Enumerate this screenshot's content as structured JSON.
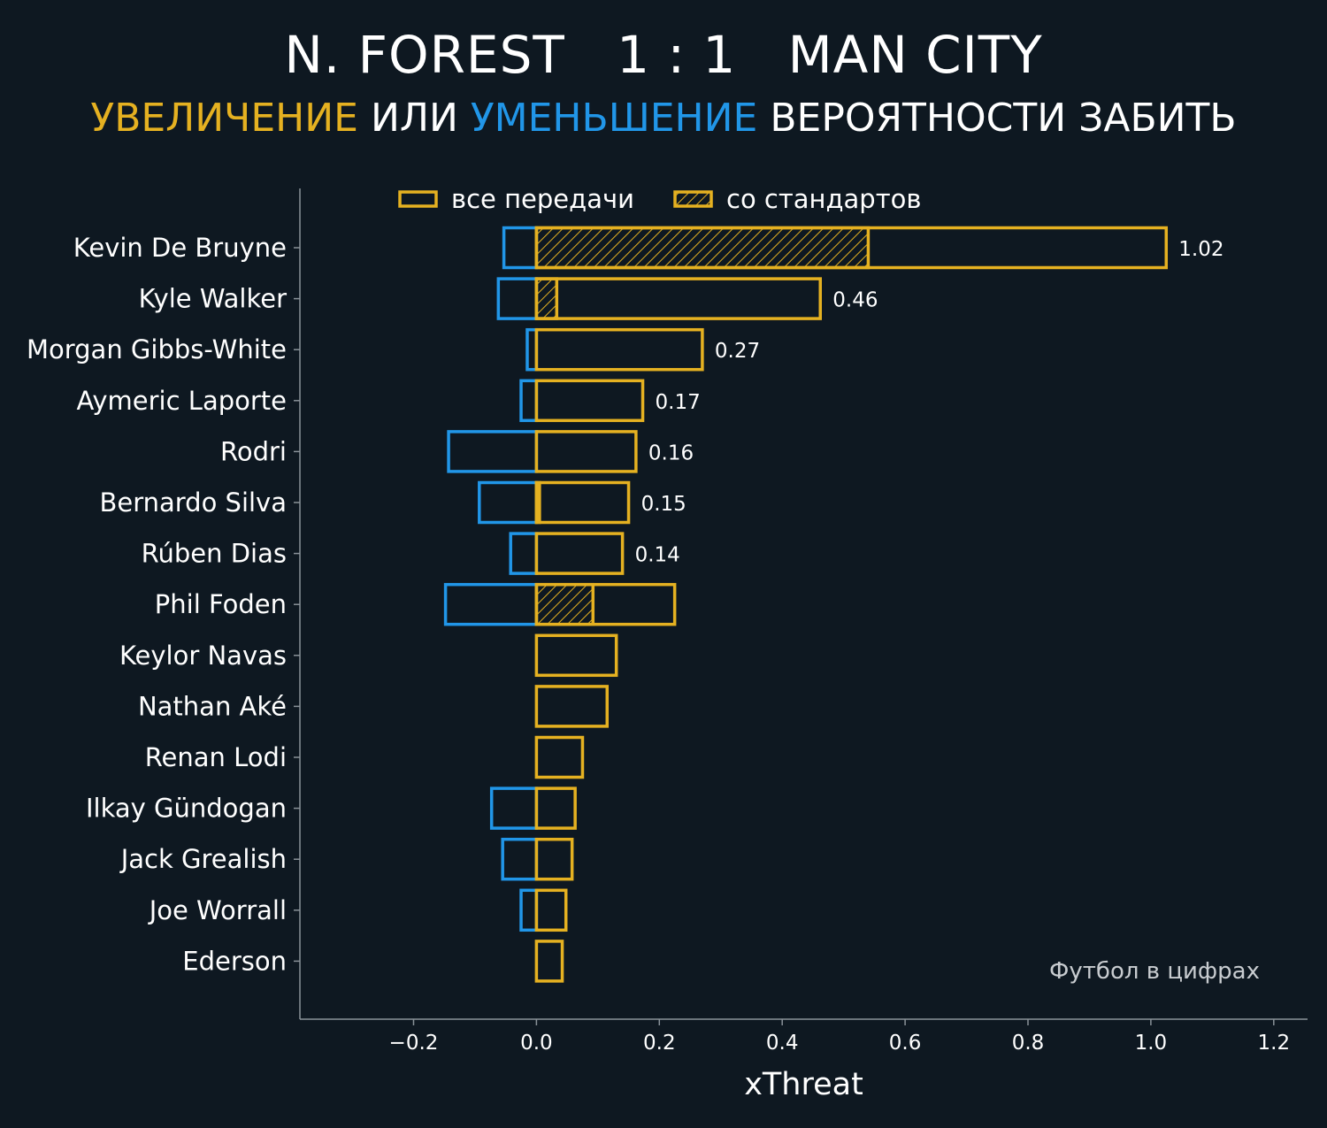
{
  "header": {
    "title": "N. FOREST   1 : 1   MAN CITY",
    "subtitle_parts": [
      {
        "text": "УВЕЛИЧЕНИЕ",
        "color": "#e5b121"
      },
      {
        "text": " ИЛИ ",
        "color": "#ffffff"
      },
      {
        "text": "УМЕНЬШЕНИЕ",
        "color": "#2196e8"
      },
      {
        "text": " ВЕРОЯТНОСТИ ЗАБИТЬ",
        "color": "#ffffff"
      }
    ]
  },
  "colors": {
    "background": "#0e1821",
    "increase": "#e5b121",
    "decrease": "#2196e8",
    "axis": "#8a9299",
    "text": "#ffffff",
    "watermark": "#c8ccd0"
  },
  "watermark": "Футбол в цифрах",
  "chart_data": {
    "type": "bar",
    "orientation": "horizontal",
    "xlabel": "xThreat",
    "xlim": [
      -0.385,
      1.255
    ],
    "xticks": [
      -0.2,
      0.0,
      0.2,
      0.4,
      0.6,
      0.8,
      1.0,
      1.2
    ],
    "xtick_labels": [
      "−0.2",
      "0.0",
      "0.2",
      "0.4",
      "0.6",
      "0.8",
      "1.0",
      "1.2"
    ],
    "legend": {
      "placement": "top",
      "entries": [
        {
          "label": "все передачи",
          "style": "outline"
        },
        {
          "label": "со стандартов",
          "style": "hatched"
        }
      ]
    },
    "categories": [
      "Kevin De Bruyne",
      "Kyle Walker",
      "Morgan Gibbs-White",
      "Aymeric Laporte",
      "Rodri",
      "Bernardo Silva",
      "Rúben Dias",
      "Phil Foden",
      "Keylor Navas",
      "Nathan Aké",
      "Renan Lodi",
      "Ilkay Gündogan",
      "Jack Grealish",
      "Joe Worrall",
      "Ederson"
    ],
    "series": [
      {
        "name": "все передачи",
        "kind": "increase",
        "values": [
          1.025,
          0.462,
          0.27,
          0.173,
          0.162,
          0.15,
          0.14,
          0.225,
          0.13,
          0.115,
          0.075,
          0.063,
          0.058,
          0.048,
          0.042
        ]
      },
      {
        "name": "со стандартов",
        "kind": "increase",
        "values": [
          0.54,
          0.033,
          0,
          0,
          0,
          0.005,
          0,
          0.092,
          0,
          0,
          0,
          0,
          0,
          0,
          0
        ]
      },
      {
        "kind": "decrease",
        "values": [
          -0.053,
          -0.062,
          -0.015,
          -0.025,
          -0.143,
          -0.093,
          -0.042,
          -0.148,
          0,
          0,
          0,
          -0.073,
          -0.055,
          -0.025,
          0
        ]
      }
    ],
    "data_labels": [
      "1.02",
      "0.46",
      "0.27",
      "0.17",
      "0.16",
      "0.15",
      "0.14",
      "",
      "",
      "",
      "",
      "",
      "",
      "",
      ""
    ]
  }
}
